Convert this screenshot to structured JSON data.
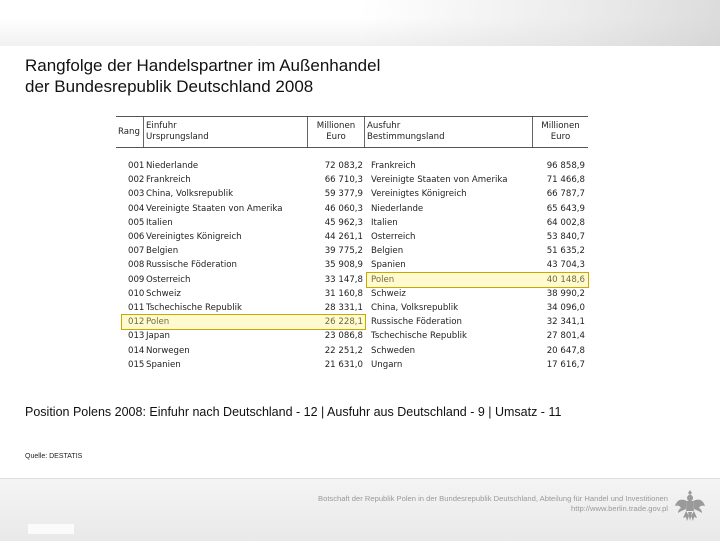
{
  "title": {
    "line1": "Rangfolge der Handelspartner im Außenhandel",
    "line2": "der Bundesrepublik Deutschland 2008"
  },
  "table": {
    "headers": {
      "rank": "Rang",
      "import_label_1": "Einfuhr",
      "import_label_2": "Ursprungsland",
      "import_value_1": "Millionen",
      "import_value_2": "Euro",
      "export_label_1": "Ausfuhr",
      "export_label_2": "Bestimmungsland",
      "export_value_1": "Millionen",
      "export_value_2": "Euro"
    },
    "rows": [
      {
        "rank": "001",
        "import_country": "Niederlande",
        "import_value": "72 083,2",
        "export_country": "Frankreich",
        "export_value": "96 858,9"
      },
      {
        "rank": "002",
        "import_country": "Frankreich",
        "import_value": "66 710,3",
        "export_country": "Vereinigte Staaten von Amerika",
        "export_value": "71 466,8"
      },
      {
        "rank": "003",
        "import_country": "China, Volksrepublik",
        "import_value": "59 377,9",
        "export_country": "Vereinigtes Königreich",
        "export_value": "66 787,7"
      },
      {
        "rank": "004",
        "import_country": "Vereinigte Staaten von Amerika",
        "import_value": "46 060,3",
        "export_country": "Niederlande",
        "export_value": "65 643,9"
      },
      {
        "rank": "005",
        "import_country": "Italien",
        "import_value": "45 962,3",
        "export_country": "Italien",
        "export_value": "64 002,8"
      },
      {
        "rank": "006",
        "import_country": "Vereinigtes Königreich",
        "import_value": "44 261,1",
        "export_country": "Österreich",
        "export_value": "53 840,7"
      },
      {
        "rank": "007",
        "import_country": "Belgien",
        "import_value": "39 775,2",
        "export_country": "Belgien",
        "export_value": "51 635,2"
      },
      {
        "rank": "008",
        "import_country": "Russische Föderation",
        "import_value": "35 908,9",
        "export_country": "Spanien",
        "export_value": "43 704,3"
      },
      {
        "rank": "009",
        "import_country": "Österreich",
        "import_value": "33 147,8",
        "export_country": "Polen",
        "export_value": "40 148,6"
      },
      {
        "rank": "010",
        "import_country": "Schweiz",
        "import_value": "31 160,8",
        "export_country": "Schweiz",
        "export_value": "38 990,2"
      },
      {
        "rank": "011",
        "import_country": "Tschechische Republik",
        "import_value": "28 331,1",
        "export_country": "China, Volksrepublik",
        "export_value": "34 096,0"
      },
      {
        "rank": "012",
        "import_country": "Polen",
        "import_value": "26 228,1",
        "export_country": "Russische Föderation",
        "export_value": "32 341,1"
      },
      {
        "rank": "013",
        "import_country": "Japan",
        "import_value": "23 086,8",
        "export_country": "Tschechische Republik",
        "export_value": "27 801,4"
      },
      {
        "rank": "014",
        "import_country": "Norwegen",
        "import_value": "22 251,2",
        "export_country": "Schweden",
        "export_value": "20 647,8"
      },
      {
        "rank": "015",
        "import_country": "Spanien",
        "import_value": "21 631,0",
        "export_country": "Ungarn",
        "export_value": "17 616,7"
      }
    ],
    "highlight_color": "#c9a800"
  },
  "position_text": "Position Polens 2008:  Einfuhr nach Deutschland  - 12  |  Ausfuhr aus Deutschland -  9  |  Umsatz  - 11",
  "source": "Quelle: DESTATIS",
  "footer": {
    "line1": "Botschaft der Republik Polen in der Bundesrepublik Deutschland, Abteilung für Handel und Investitionen",
    "line2": "http://www.berlin.trade.gov.pl"
  },
  "icons": {
    "emblem": "polish-eagle-icon"
  }
}
